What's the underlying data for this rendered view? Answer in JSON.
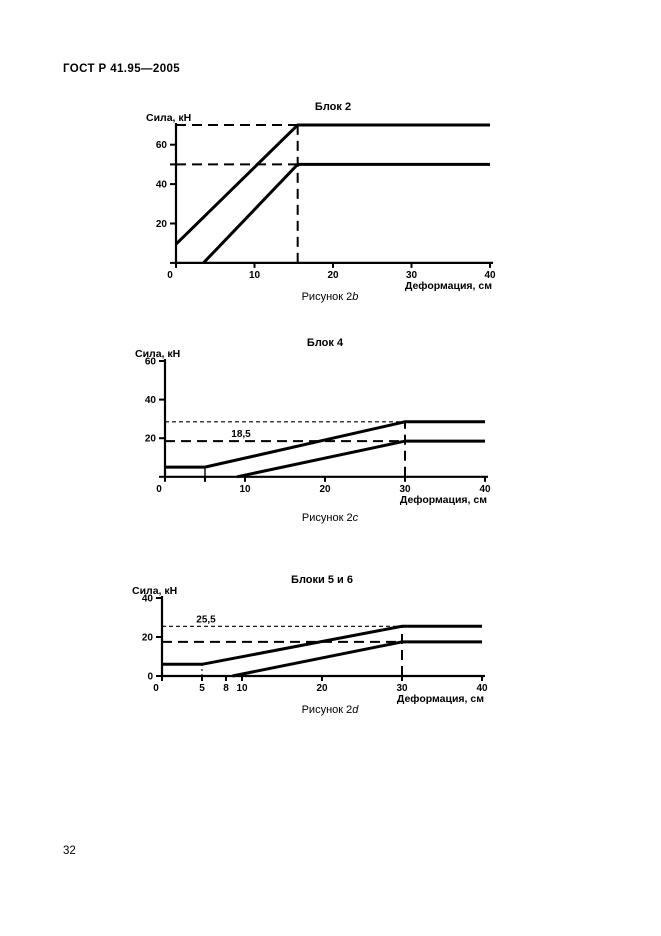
{
  "page": {
    "header": "ГОСТ Р 41.95—2005",
    "page_number": "32"
  },
  "colors": {
    "ink": "#000000",
    "paper": "#ffffff"
  },
  "chart_data": [
    {
      "type": "line",
      "title": "Блок 2",
      "ylabel": "Сила, кН",
      "xlabel": "Деформация, см",
      "caption": {
        "prefix": "Рисунок 2",
        "letter": "b"
      },
      "xlim": [
        0,
        40
      ],
      "ylim": [
        0,
        70
      ],
      "grid": false,
      "xticks": [
        {
          "v": 0,
          "label": "0"
        },
        {
          "v": 10,
          "label": "10"
        },
        {
          "v": 20,
          "label": "20"
        },
        {
          "v": 30,
          "label": "30"
        },
        {
          "v": 40,
          "label": "40"
        }
      ],
      "yticks": [
        {
          "v": 0,
          "label": ""
        },
        {
          "v": 20,
          "label": "20"
        },
        {
          "v": 40,
          "label": "40"
        },
        {
          "v": 50,
          "label": ""
        },
        {
          "v": 60,
          "label": "60"
        }
      ],
      "series": [
        {
          "name": "upper-limit",
          "points": [
            [
              0,
              9.5
            ],
            [
              15.5,
              70
            ],
            [
              40,
              70
            ]
          ]
        },
        {
          "name": "lower-limit",
          "points": [
            [
              3.5,
              0
            ],
            [
              15.5,
              50
            ],
            [
              40,
              50
            ]
          ]
        }
      ],
      "guides": [
        {
          "from": [
            0,
            70
          ],
          "to": [
            15.5,
            70
          ],
          "style": "long"
        },
        {
          "from": [
            0,
            50
          ],
          "to": [
            15.5,
            50
          ],
          "style": "long"
        },
        {
          "from": [
            15.5,
            0
          ],
          "to": [
            15.5,
            70
          ],
          "style": "long"
        }
      ],
      "annotations": []
    },
    {
      "type": "line",
      "title": "Блок 4",
      "ylabel": "Сила, кН",
      "xlabel": "Деформация, см",
      "caption": {
        "prefix": "Рисунок 2",
        "letter": "c"
      },
      "xlim": [
        0,
        40
      ],
      "ylim": [
        0,
        60
      ],
      "grid": false,
      "xticks": [
        {
          "v": 0,
          "label": "0"
        },
        {
          "v": 5,
          "label": ""
        },
        {
          "v": 10,
          "label": "10"
        },
        {
          "v": 20,
          "label": "20"
        },
        {
          "v": 30,
          "label": "30"
        },
        {
          "v": 40,
          "label": "40"
        }
      ],
      "yticks": [
        {
          "v": 0,
          "label": ""
        },
        {
          "v": 20,
          "label": "20"
        },
        {
          "v": 40,
          "label": "40"
        },
        {
          "v": 60,
          "label": "60"
        }
      ],
      "series": [
        {
          "name": "upper-limit",
          "points": [
            [
              0,
              5
            ],
            [
              5,
              5
            ],
            [
              30,
              28.5
            ],
            [
              40,
              28.5
            ]
          ]
        },
        {
          "name": "lower-limit",
          "points": [
            [
              9,
              0
            ],
            [
              30,
              18.5
            ],
            [
              40,
              18.5
            ]
          ]
        }
      ],
      "guides": [
        {
          "from": [
            0,
            28.5
          ],
          "to": [
            30,
            28.5
          ],
          "style": "fine"
        },
        {
          "from": [
            0,
            18.5
          ],
          "to": [
            30,
            18.5
          ],
          "style": "long"
        },
        {
          "from": [
            30,
            0
          ],
          "to": [
            30,
            28.5
          ],
          "style": "long"
        },
        {
          "from": [
            5,
            0
          ],
          "to": [
            5,
            5
          ],
          "style": "vsolid"
        }
      ],
      "annotations": [
        {
          "text": "18,5",
          "x": 9.5,
          "y": 18.5,
          "dy": -4
        }
      ]
    },
    {
      "type": "line",
      "title": "Блоки 5 и 6",
      "ylabel": "Сила, кН",
      "xlabel": "Деформация, см",
      "caption": {
        "prefix": "Рисунок 2",
        "letter": "d"
      },
      "xlim": [
        0,
        40
      ],
      "ylim": [
        0,
        40
      ],
      "grid": false,
      "xticks": [
        {
          "v": 0,
          "label": "0"
        },
        {
          "v": 5,
          "label": "5"
        },
        {
          "v": 8,
          "label": "8"
        },
        {
          "v": 10,
          "label": "10"
        },
        {
          "v": 20,
          "label": "20"
        },
        {
          "v": 30,
          "label": "30"
        },
        {
          "v": 40,
          "label": "40"
        }
      ],
      "yticks": [
        {
          "v": 0,
          "label": "0"
        },
        {
          "v": 20,
          "label": "20"
        },
        {
          "v": 40,
          "label": "40"
        }
      ],
      "series": [
        {
          "name": "upper-limit",
          "points": [
            [
              0,
              6
            ],
            [
              5,
              6
            ],
            [
              30,
              25.5
            ],
            [
              40,
              25.5
            ]
          ]
        },
        {
          "name": "lower-limit",
          "points": [
            [
              8.8,
              0
            ],
            [
              30,
              17.5
            ],
            [
              40,
              17.5
            ]
          ]
        }
      ],
      "guides": [
        {
          "from": [
            0,
            25.5
          ],
          "to": [
            30,
            25.5
          ],
          "style": "fine"
        },
        {
          "from": [
            0,
            17.5
          ],
          "to": [
            30,
            17.5
          ],
          "style": "long"
        },
        {
          "from": [
            30,
            0
          ],
          "to": [
            30,
            25.5
          ],
          "style": "long"
        },
        {
          "from": [
            5,
            0
          ],
          "to": [
            5,
            6
          ],
          "style": "vshort"
        }
      ],
      "annotations": [
        {
          "text": "25,5",
          "x": 5.5,
          "y": 25.5,
          "dy": -4
        }
      ]
    }
  ]
}
